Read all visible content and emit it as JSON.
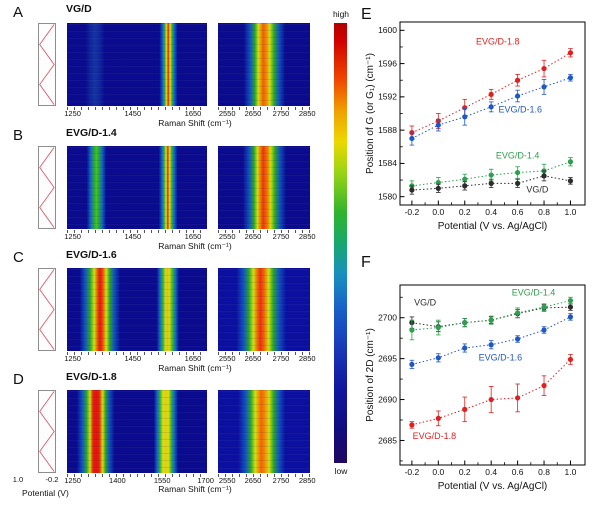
{
  "figure": {
    "raman_label": "Raman Shift (cm⁻¹)",
    "panels": [
      {
        "letter": "A",
        "title": "VG/D",
        "map1": {
          "ticks": [
            "1250",
            "1450",
            "1650"
          ],
          "gradient": "linear-gradient(90deg, #0a0b8e 0%, #0a0b8e 13%, #10279f 17%, #17349f 20%, #10279f 23%, #0a0b8e 27%, #0a0b8e 66%, #1468c8 68.5%, #2eb437 70%, #e0e414 71%, #ee6c0a 71.8%, #e02410 72.3%, #ee6c0a 72.8%, #e0e414 73.6%, #2eb437 75%, #1468c8 76.5%, #0a0b8e 79%, #0a0b8e 100%)"
        },
        "map2": {
          "ticks": [
            "2550",
            "2650",
            "2750",
            "2850"
          ],
          "gradient": "linear-gradient(90deg, #0a0b8e 0%, #0a0b8e 28%, #1253c0 35%, #28a42e 40%, #cfe00e 44%, #f08c08 47%, #ee5e08 49%, #f08c08 53%, #cfe00e 56%, #28a42e 61%, #1253c0 66%, #0a0b8e 73%, #0a0b8e 100%)"
        }
      },
      {
        "letter": "B",
        "title": "EVG/D-1.4",
        "map1": {
          "ticks": [
            "1250",
            "1450",
            "1650"
          ],
          "gradient": "linear-gradient(90deg, #0a0b8e 0%, #0a0b8e 14%, #1566c6 17%, #2aaa30 19.5%, #43c12c 21%, #2aaa30 22.5%, #1566c6 25%, #0a0b8e 28%, #0a0b8e 65.5%, #1468c8 68%, #2eb437 69.5%, #e0e414 70.8%, #e02410 72%, #e0e414 73.2%, #2eb437 74.8%, #1468c8 76.5%, #0a0b8e 79%, #0a0b8e 100%)"
        },
        "map2": {
          "ticks": [
            "2550",
            "2650",
            "2750",
            "2850"
          ],
          "gradient": "linear-gradient(90deg, #0a0b8e 0%, #0a0b8e 27%, #1253c0 34%, #28a42e 39%, #cfe00e 43%, #f07c08 46%, #e8380c 49%, #f07c08 54%, #cfe00e 57%, #28a42e 62%, #1253c0 67%, #0a0b8e 74%, #0a0b8e 100%)"
        }
      },
      {
        "letter": "C",
        "title": "EVG/D-1.6",
        "map1": {
          "ticks": [
            "1250",
            "1450",
            "1650"
          ],
          "gradient": "linear-gradient(90deg, #0a0b8e 0%, #0a0b8e 9%, #1253c0 13%, #28a42e 16.5%, #cfe00e 19.5%, #ea4a0c 22%, #e01810 23.5%, #ea4a0c 25.5%, #cfe00e 28%, #28a42e 30.5%, #1253c0 33.5%, #0a0b8e 38%, #0a0b8e 64%, #1468c8 66.5%, #2eb437 68.5%, #d8dc12 70.5%, #f0b60a 71.8%, #d8dc12 73%, #2eb437 75.5%, #1468c8 77.5%, #0a0b8e 80%, #0a0b8e 100%)"
        },
        "map2": {
          "ticks": [
            "2550",
            "2650",
            "2750",
            "2850"
          ],
          "gradient": "linear-gradient(90deg, #0c10a0 0%, #0c10a0 20%, #1253c0 28%, #28a42e 33.5%, #cfe00e 38.5%, #ee640a 43%, #e8300e 46%, #ee640a 50%, #cfe00e 55%, #28a42e 60%, #1253c0 66%, #0c10a0 74%, #0c10a0 100%)"
        }
      },
      {
        "letter": "D",
        "title": "EVG/D-1.8",
        "map1": {
          "ticks": [
            "1250",
            "1400",
            "1550",
            "1700"
          ],
          "gradient": "linear-gradient(90deg, #0a0b8e 0%, #0a0b8e 7%, #1253c0 11%, #28a42e 14%, #cfe00e 16.5%, #e42012 18.5%, #dc1410 21%, #e42012 23%, #cfe00e 25.5%, #28a42e 27.5%, #1253c0 30%, #0a0b8e 34%, #0a0b8e 62%, #1468c8 64.5%, #2eb437 66.5%, #d8dc12 68.5%, #e8ca10 70.5%, #d8dc12 72.5%, #2eb437 74.5%, #1468c8 76.5%, #0a0b8e 79.5%, #0a0b8e 100%)"
        },
        "map2": {
          "ticks": [
            "2550",
            "2650",
            "2750",
            "2850"
          ],
          "gradient": "linear-gradient(90deg, #0c10a0 0%, #0c10a0 22%, #1253c0 30%, #28a42e 35.5%, #cfe00e 40.5%, #f08c08 44.5%, #ee6408 47%, #f08c08 51%, #cfe00e 55.5%, #28a42e 60.5%, #1253c0 66%, #0c10a0 73%, #0c10a0 100%)"
        }
      }
    ],
    "potential_axis": {
      "tick_left": "1.0",
      "tick_right": "-0.2",
      "label": "Potential (V)"
    },
    "colorbar": {
      "high": "high",
      "low": "low",
      "gradient": "linear-gradient(180deg, #b40000 0%, #d00000 4%, #f04800 13%, #f0a000 20%, #ecd800 27%, #98d414 34%, #30b42c 43%, #18a86c 50%, #1890c0 57%, #1860c8 65%, #1838b8 74%, #1018a0 83%, #100c80 92%, #200a60 100%)"
    },
    "panel_e_letter": "E",
    "panel_f_letter": "F"
  },
  "chart_data": [
    {
      "type": "scatter",
      "title": "",
      "xlabel": "Potential (V vs. Ag/AgCl)",
      "ylabel": "Position of G (or G₁) (cm⁻¹)",
      "xlim": [
        -0.29,
        1.11
      ],
      "ylim": [
        1579,
        1601
      ],
      "x": [
        -0.2,
        0.0,
        0.2,
        0.4,
        0.6,
        0.8,
        1.0
      ],
      "xticks": [
        -0.2,
        0.0,
        0.2,
        0.4,
        0.6,
        0.8,
        1.0
      ],
      "xtick_labels": [
        "-0.2",
        "0.0",
        "0.2",
        "0.4",
        "0.6",
        "0.8",
        "1.0"
      ],
      "yticks": [
        1580,
        1584,
        1588,
        1592,
        1596,
        1600
      ],
      "ytick_labels": [
        "1580",
        "1584",
        "1588",
        "1592",
        "1596",
        "1600"
      ],
      "x_minor": 0.1,
      "y_minor": 2,
      "grid": false,
      "series": [
        {
          "name": "EVG/D-1.8",
          "color": "#e02020",
          "values": [
            1587.7,
            1589.1,
            1590.7,
            1592.3,
            1594.0,
            1595.4,
            1597.3
          ],
          "errors": [
            0.8,
            0.9,
            1.0,
            0.6,
            0.7,
            1.0,
            0.5
          ],
          "label_at": [
            0.45,
            1598.3
          ]
        },
        {
          "name": "EVG/D-1.6",
          "color": "#1f57c4",
          "values": [
            1587.0,
            1588.6,
            1589.6,
            1590.8,
            1592.1,
            1593.2,
            1594.3
          ],
          "errors": [
            0.8,
            0.7,
            1.0,
            0.6,
            0.7,
            0.9,
            0.4
          ],
          "label_at": [
            0.62,
            1590.1
          ]
        },
        {
          "name": "EVG/D-1.4",
          "color": "#2f9e4e",
          "values": [
            1581.3,
            1581.7,
            1582.1,
            1582.6,
            1582.9,
            1583.1,
            1584.2
          ],
          "errors": [
            0.6,
            0.6,
            0.6,
            0.7,
            0.7,
            0.8,
            0.5
          ],
          "label_at": [
            0.6,
            1584.6
          ]
        },
        {
          "name": "VG/D",
          "color": "#2d2d2d",
          "values": [
            1580.8,
            1581.0,
            1581.3,
            1581.6,
            1581.6,
            1582.5,
            1581.9
          ],
          "errors": [
            0.5,
            0.5,
            0.5,
            0.5,
            0.5,
            0.6,
            0.4
          ],
          "label_at": [
            0.75,
            1580.5
          ]
        }
      ]
    },
    {
      "type": "scatter",
      "title": "",
      "xlabel": "Potential (V vs. Ag/AgCl)",
      "ylabel": "Position of 2D (cm⁻¹)",
      "xlim": [
        -0.29,
        1.11
      ],
      "ylim": [
        2682,
        2704
      ],
      "x": [
        -0.2,
        0.0,
        0.2,
        0.4,
        0.6,
        0.8,
        1.0
      ],
      "xticks": [
        -0.2,
        0.0,
        0.2,
        0.4,
        0.6,
        0.8,
        1.0
      ],
      "xtick_labels": [
        "-0.2",
        "0.0",
        "0.2",
        "0.4",
        "0.6",
        "0.8",
        "1.0"
      ],
      "yticks": [
        2685,
        2690,
        2695,
        2700
      ],
      "ytick_labels": [
        "2685",
        "2690",
        "2695",
        "2700"
      ],
      "x_minor": 0.1,
      "y_minor": 2.5,
      "grid": false,
      "series": [
        {
          "name": "VG/D",
          "color": "#2d2d2d",
          "values": [
            2699.4,
            2698.9,
            2699.4,
            2699.7,
            2700.5,
            2701.2,
            2701.3
          ],
          "errors": [
            0.7,
            0.6,
            0.5,
            0.4,
            0.5,
            0.4,
            0.4
          ],
          "label_at": [
            -0.1,
            2701.5
          ]
        },
        {
          "name": "EVG/D-1.4",
          "color": "#2f9e4e",
          "values": [
            2698.5,
            2698.8,
            2699.4,
            2699.7,
            2700.6,
            2701.3,
            2702.1
          ],
          "errors": [
            1.2,
            0.9,
            0.5,
            0.5,
            0.6,
            0.4,
            0.4
          ],
          "label_at": [
            0.72,
            2702.7
          ]
        },
        {
          "name": "EVG/D-1.6",
          "color": "#1f57c4",
          "values": [
            2694.3,
            2695.1,
            2696.3,
            2696.7,
            2697.4,
            2698.5,
            2700.1
          ],
          "errors": [
            0.5,
            0.5,
            0.5,
            0.5,
            0.4,
            0.4,
            0.4
          ],
          "label_at": [
            0.47,
            2694.8
          ]
        },
        {
          "name": "EVG/D-1.8",
          "color": "#e02020",
          "values": [
            2686.9,
            2687.7,
            2688.8,
            2690.0,
            2690.2,
            2691.7,
            2694.9
          ],
          "errors": [
            0.4,
            0.9,
            1.5,
            1.6,
            1.7,
            1.2,
            0.6
          ],
          "label_at": [
            -0.03,
            2685.2
          ]
        }
      ]
    }
  ]
}
